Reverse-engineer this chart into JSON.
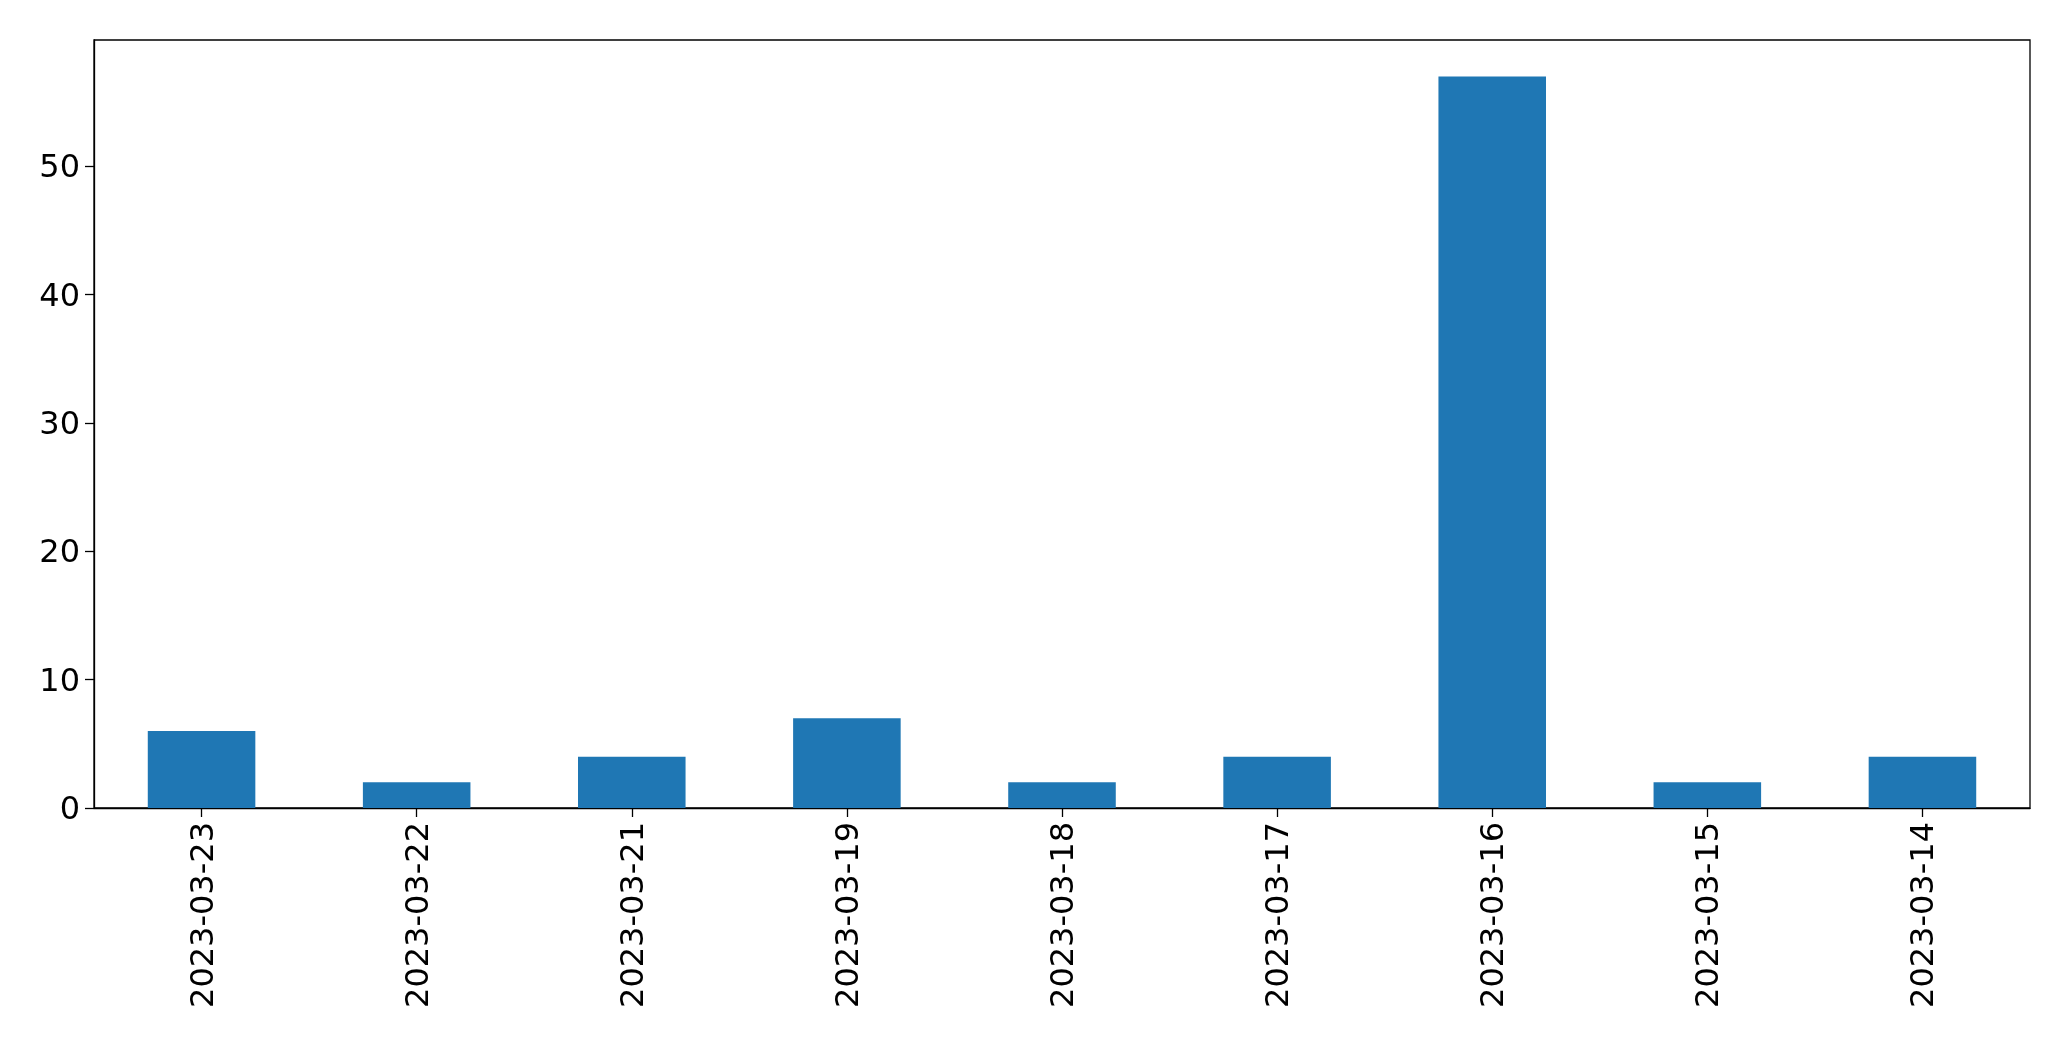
{
  "chart_data": {
    "type": "bar",
    "categories": [
      "2023-03-23",
      "2023-03-22",
      "2023-03-21",
      "2023-03-19",
      "2023-03-18",
      "2023-03-17",
      "2023-03-16",
      "2023-03-15",
      "2023-03-14"
    ],
    "values": [
      6,
      2,
      4,
      7,
      2,
      4,
      57,
      2,
      4
    ],
    "color": "#1f77b4",
    "ylim": [
      0,
      59.85
    ],
    "yticks": [
      0,
      10,
      20,
      30,
      40,
      50
    ],
    "grid": false
  }
}
